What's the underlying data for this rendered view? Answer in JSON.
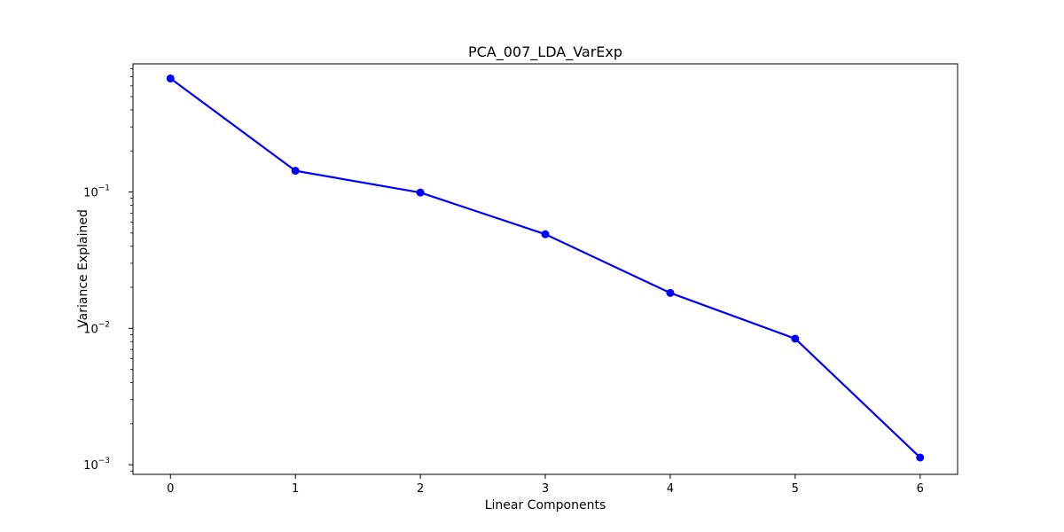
{
  "chart_data": {
    "type": "line",
    "title": "PCA_007_LDA_VarExp",
    "xlabel": "Linear Components",
    "ylabel": "Variance Explained",
    "x": [
      0,
      1,
      2,
      3,
      4,
      5,
      6
    ],
    "series": [
      {
        "values": [
          0.68,
          0.143,
          0.099,
          0.049,
          0.0182,
          0.0084,
          0.00113
        ],
        "color": "#0000ff",
        "marker": "circle"
      }
    ],
    "x_ticks": [
      "0",
      "1",
      "2",
      "3",
      "4",
      "5",
      "6"
    ],
    "y_scale": "log",
    "y_ticks": [
      {
        "base": "10",
        "exp": "−1",
        "value": 0.1
      },
      {
        "base": "10",
        "exp": "−2",
        "value": 0.01
      },
      {
        "base": "10",
        "exp": "−3",
        "value": 0.001
      }
    ],
    "xlim": [
      -0.3,
      6.3
    ],
    "ylim": [
      0.00085,
      0.87
    ],
    "grid": false,
    "legend": "none"
  }
}
